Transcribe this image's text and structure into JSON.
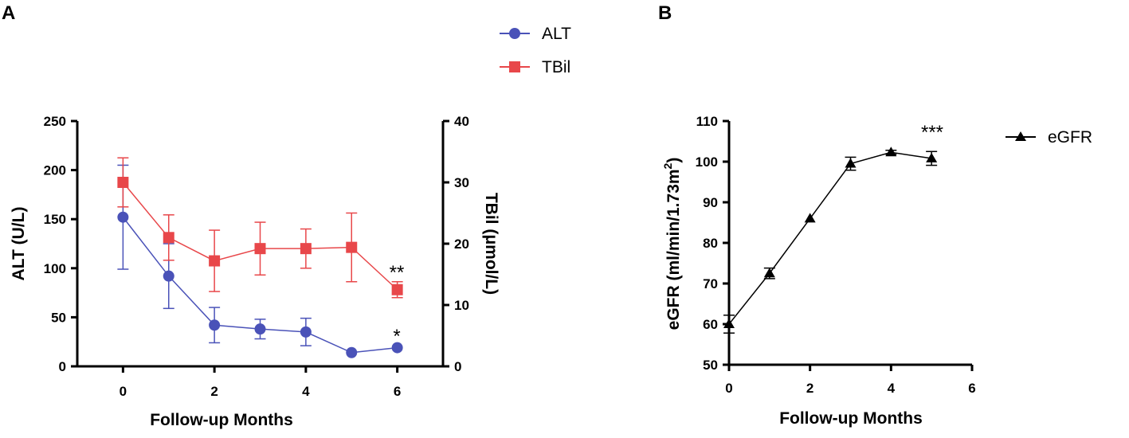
{
  "chart_data": [
    {
      "panel": "A",
      "type": "line",
      "xlabel": "Follow-up Months",
      "ylabel": "ALT (U/L)",
      "y2label": "TBil (μmol/L)",
      "xlim": [
        -1,
        7
      ],
      "xticks": [
        "0",
        "2",
        "4",
        "6"
      ],
      "ylim": [
        0,
        250
      ],
      "yticks": [
        "0",
        "50",
        "100",
        "150",
        "200",
        "250"
      ],
      "y2lim": [
        0,
        40
      ],
      "y2ticks": [
        "0",
        "10",
        "20",
        "30",
        "40"
      ],
      "legend": [
        "ALT",
        "TBil"
      ],
      "series": [
        {
          "name": "ALT",
          "color": "#4a52b8",
          "marker": "circle",
          "axis": "left",
          "x": [
            0,
            1,
            2,
            3,
            4,
            5,
            6
          ],
          "y": [
            152,
            92,
            42,
            38,
            35,
            14,
            19
          ],
          "err": [
            53,
            33,
            18,
            10,
            14,
            0,
            0
          ]
        },
        {
          "name": "TBil",
          "color": "#e8474a",
          "marker": "square",
          "axis": "right",
          "x": [
            0,
            1,
            2,
            3,
            4,
            5,
            6
          ],
          "y": [
            30,
            21,
            17.2,
            19.2,
            19.2,
            19.4,
            12.5
          ],
          "err": [
            4,
            3.7,
            5,
            4.3,
            3.2,
            5.6,
            1.3
          ]
        }
      ],
      "annotations": [
        "**",
        "*"
      ]
    },
    {
      "panel": "B",
      "type": "line",
      "xlabel": "Follow-up Months",
      "ylabel": "eGFR (ml/min/1.73m",
      "ylabel_sup": "2",
      "ylabel_close": ")",
      "xlim": [
        0,
        6
      ],
      "xticks": [
        "0",
        "2",
        "4",
        "6"
      ],
      "ylim": [
        50,
        110
      ],
      "yticks": [
        "50",
        "60",
        "70",
        "80",
        "90",
        "100",
        "110"
      ],
      "legend": [
        "eGFR"
      ],
      "series": [
        {
          "name": "eGFR",
          "color": "#000000",
          "marker": "triangle",
          "x": [
            0,
            1,
            2,
            3,
            4,
            5
          ],
          "y": [
            60,
            72.5,
            86,
            99.5,
            102.3,
            100.8
          ],
          "err": [
            2.2,
            1.3,
            0,
            1.6,
            0.5,
            1.7
          ]
        }
      ],
      "annotations": [
        "***"
      ]
    }
  ]
}
